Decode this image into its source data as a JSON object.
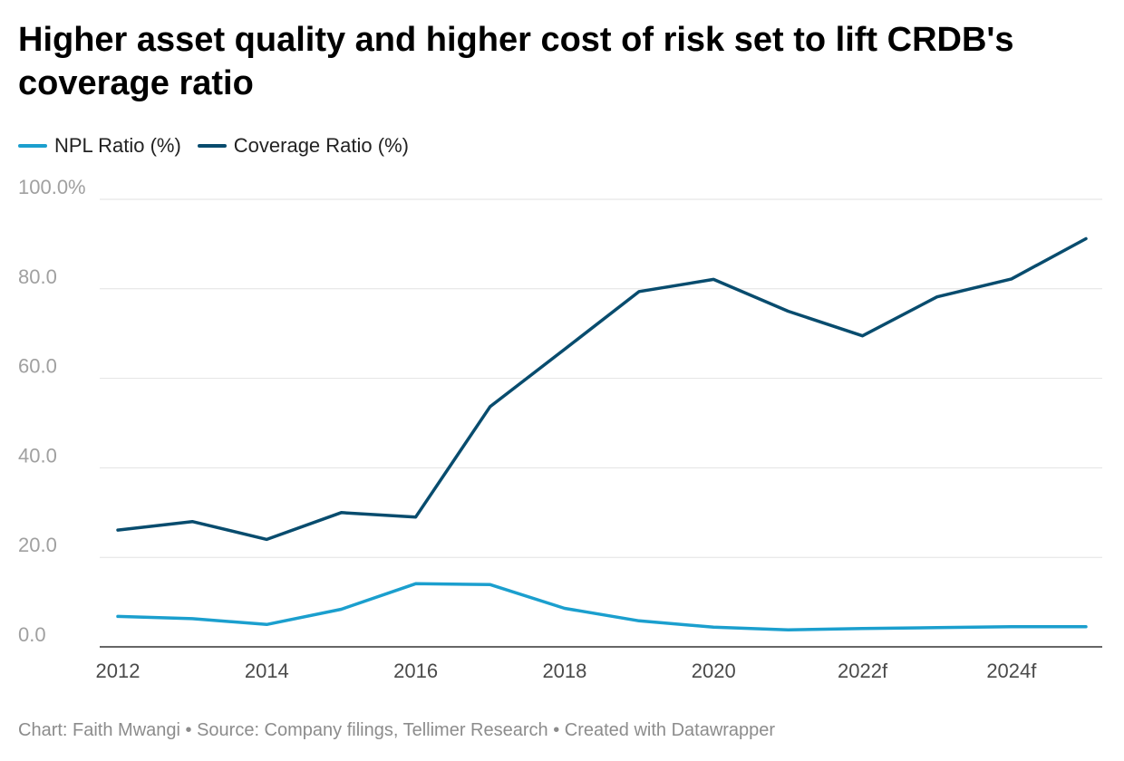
{
  "title": "Higher asset quality and higher cost of risk set to lift CRDB's coverage ratio",
  "legend": [
    {
      "label": "NPL Ratio (%)",
      "color": "#1b9fce"
    },
    {
      "label": "Coverage Ratio (%)",
      "color": "#084c6e"
    }
  ],
  "footer": "Chart: Faith Mwangi • Source: Company filings, Tellimer Research • Created with Datawrapper",
  "chart_data": {
    "type": "line",
    "title": "Higher asset quality and higher cost of risk set to lift CRDB's coverage ratio",
    "xlabel": "",
    "ylabel": "",
    "x": [
      "2012",
      "2013",
      "2014",
      "2015",
      "2016",
      "2017",
      "2018",
      "2019",
      "2020",
      "2021",
      "2022f",
      "2023f",
      "2024f",
      "2025f"
    ],
    "x_tick_labels": [
      "2012",
      "2014",
      "2016",
      "2018",
      "2020",
      "2022f",
      "2024f"
    ],
    "y_ticks": [
      0,
      20,
      40,
      60,
      80,
      100
    ],
    "y_tick_labels": [
      "0.0",
      "20.0",
      "40.0",
      "60.0",
      "80.0",
      "100.0%"
    ],
    "ylim": [
      0,
      100
    ],
    "grid": true,
    "legend_position": "top-left",
    "series": [
      {
        "name": "NPL Ratio (%)",
        "color": "#1b9fce",
        "values": [
          6.8,
          6.3,
          5.0,
          8.4,
          14.1,
          13.9,
          8.6,
          5.8,
          4.4,
          3.8,
          4.1,
          4.3,
          4.5,
          4.5
        ]
      },
      {
        "name": "Coverage Ratio (%)",
        "color": "#084c6e",
        "values": [
          26.1,
          28.0,
          24.0,
          30.0,
          29.0,
          53.7,
          66.5,
          79.4,
          82.1,
          75.0,
          69.5,
          78.2,
          82.2,
          91.2
        ]
      }
    ]
  }
}
